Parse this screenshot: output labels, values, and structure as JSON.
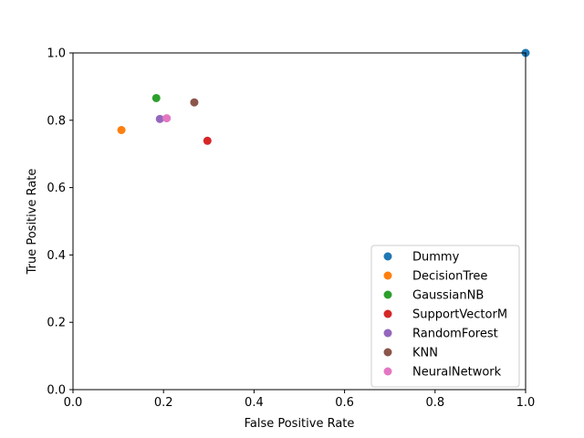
{
  "chart_data": {
    "type": "scatter",
    "xlabel": "False Positive Rate",
    "ylabel": "True Positive Rate",
    "xlim": [
      0.0,
      1.0
    ],
    "ylim": [
      0.0,
      1.0
    ],
    "xticks": [
      "0.0",
      "0.2",
      "0.4",
      "0.6",
      "0.8",
      "1.0"
    ],
    "yticks": [
      "0.0",
      "0.2",
      "0.4",
      "0.6",
      "0.8",
      "1.0"
    ],
    "grid": false,
    "legend_position": "lower-right",
    "series": [
      {
        "name": "Dummy",
        "color": "#1f77b4",
        "x": [
          1.0
        ],
        "y": [
          1.0
        ]
      },
      {
        "name": "DecisionTree",
        "color": "#ff7f0e",
        "x": [
          0.107
        ],
        "y": [
          0.771
        ]
      },
      {
        "name": "GaussianNB",
        "color": "#2ca02c",
        "x": [
          0.184
        ],
        "y": [
          0.866
        ]
      },
      {
        "name": "SupportVectorM",
        "color": "#d62728",
        "x": [
          0.297
        ],
        "y": [
          0.739
        ]
      },
      {
        "name": "RandomForest",
        "color": "#9467bd",
        "x": [
          0.192
        ],
        "y": [
          0.804
        ]
      },
      {
        "name": "KNN",
        "color": "#8c564b",
        "x": [
          0.268
        ],
        "y": [
          0.853
        ]
      },
      {
        "name": "NeuralNetwork",
        "color": "#e377c2",
        "x": [
          0.207
        ],
        "y": [
          0.806
        ]
      }
    ]
  }
}
